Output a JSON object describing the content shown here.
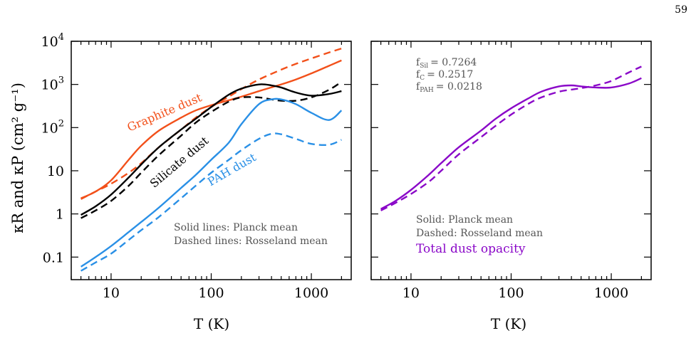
{
  "page_number": "59",
  "colors": {
    "graphite": "#f2501a",
    "silicate": "#000000",
    "pah": "#2a90e6",
    "total": "#8a08c8",
    "note": "#555555"
  },
  "chart_data": [
    {
      "type": "line",
      "xlabel": "T (K)",
      "ylabel": "κR and κP (cm² g⁻¹)",
      "xscale": "log",
      "yscale": "log",
      "xlim": [
        4,
        2500
      ],
      "ylim": [
        0.03,
        10000
      ],
      "x_ticks": [
        {
          "value": 10,
          "label": "10"
        },
        {
          "value": 100,
          "label": "100"
        },
        {
          "value": 1000,
          "label": "1000"
        }
      ],
      "y_ticks": [
        {
          "value": 0.1,
          "label": "0.1"
        },
        {
          "value": 1,
          "label": "1"
        },
        {
          "value": 10,
          "label": "10"
        },
        {
          "value": 100,
          "label": "10",
          "sup": "2"
        },
        {
          "value": 1000,
          "label": "10",
          "sup": "3"
        },
        {
          "value": 10000,
          "label": "10",
          "sup": "4"
        }
      ],
      "series": [
        {
          "key": "graphite",
          "color_key": "graphite",
          "style": "solid",
          "x": [
            5,
            7,
            10,
            15,
            20,
            30,
            50,
            70,
            100,
            150,
            200,
            300,
            500,
            700,
            1000,
            1500,
            2000
          ],
          "y": [
            2.3,
            3.3,
            6,
            18,
            38,
            85,
            170,
            250,
            330,
            430,
            520,
            700,
            1000,
            1300,
            1800,
            2700,
            3600
          ]
        },
        {
          "key": "graphite",
          "color_key": "graphite",
          "style": "dashed",
          "x": [
            5,
            7,
            10,
            15,
            20,
            30,
            50,
            70,
            100,
            150,
            200,
            300,
            500,
            700,
            1000,
            1500,
            2000
          ],
          "y": [
            2.2,
            3.3,
            5,
            9,
            15,
            35,
            90,
            170,
            300,
            520,
            780,
            1300,
            2200,
            3000,
            4000,
            5500,
            6800
          ]
        },
        {
          "key": "silicate",
          "color_key": "silicate",
          "style": "solid",
          "x": [
            5,
            7,
            10,
            15,
            20,
            30,
            50,
            70,
            100,
            150,
            200,
            300,
            400,
            500,
            700,
            1000,
            1500,
            2000
          ],
          "y": [
            0.95,
            1.5,
            2.8,
            7,
            14,
            35,
            90,
            160,
            300,
            580,
            800,
            1000,
            950,
            850,
            650,
            550,
            600,
            700
          ]
        },
        {
          "key": "silicate",
          "color_key": "silicate",
          "style": "dashed",
          "x": [
            5,
            7,
            10,
            15,
            20,
            30,
            50,
            70,
            100,
            150,
            200,
            300,
            400,
            500,
            700,
            1000,
            1500,
            2000
          ],
          "y": [
            0.8,
            1.2,
            2.0,
            4.5,
            9,
            23,
            65,
            130,
            230,
            400,
            500,
            500,
            450,
            420,
            420,
            500,
            750,
            1150
          ]
        },
        {
          "key": "pah",
          "color_key": "pah",
          "style": "solid",
          "x": [
            5,
            7,
            10,
            15,
            20,
            30,
            50,
            70,
            100,
            150,
            200,
            300,
            400,
            500,
            700,
            1000,
            1500,
            2000
          ],
          "y": [
            0.06,
            0.1,
            0.18,
            0.38,
            0.65,
            1.4,
            4,
            8,
            18,
            45,
            120,
            350,
            450,
            450,
            350,
            220,
            150,
            250
          ]
        },
        {
          "key": "pah",
          "color_key": "pah",
          "style": "dashed",
          "x": [
            5,
            7,
            10,
            15,
            20,
            30,
            50,
            70,
            100,
            150,
            200,
            300,
            400,
            500,
            700,
            1000,
            1500,
            2000
          ],
          "y": [
            0.048,
            0.075,
            0.12,
            0.25,
            0.42,
            0.85,
            2.3,
            4.5,
            9,
            18,
            30,
            55,
            72,
            70,
            55,
            42,
            40,
            52
          ]
        }
      ],
      "labels": [
        {
          "key": "graphite",
          "text": "Graphite dust",
          "color_key": "graphite"
        },
        {
          "key": "silicate",
          "text": "Silicate dust",
          "color_key": "silicate"
        },
        {
          "key": "pah",
          "text": "PAH dust",
          "color_key": "pah"
        }
      ],
      "notes": [
        "Solid lines: Planck mean",
        "Dashed lines: Rosseland mean"
      ]
    },
    {
      "type": "line",
      "xlabel": "T (K)",
      "xscale": "log",
      "yscale": "log",
      "xlim": [
        4,
        2500
      ],
      "ylim": [
        0.03,
        10000
      ],
      "x_ticks": [
        {
          "value": 10,
          "label": "10"
        },
        {
          "value": 100,
          "label": "100"
        },
        {
          "value": 1000,
          "label": "1000"
        }
      ],
      "series": [
        {
          "key": "total",
          "color_key": "total",
          "style": "solid",
          "x": [
            5,
            7,
            10,
            15,
            20,
            30,
            50,
            70,
            100,
            150,
            200,
            300,
            400,
            500,
            700,
            1000,
            1500,
            2000
          ],
          "y": [
            1.3,
            2.0,
            3.6,
            8,
            15,
            35,
            85,
            160,
            280,
            480,
            680,
            900,
            950,
            900,
            850,
            850,
            1050,
            1400
          ]
        },
        {
          "key": "total",
          "color_key": "total",
          "style": "dashed",
          "x": [
            5,
            7,
            10,
            15,
            20,
            30,
            50,
            70,
            100,
            150,
            200,
            300,
            400,
            500,
            700,
            1000,
            1500,
            2000
          ],
          "y": [
            1.2,
            1.8,
            2.9,
            5.5,
            10,
            24,
            60,
            110,
            200,
            360,
            500,
            680,
            760,
            820,
            950,
            1200,
            1900,
            2600
          ]
        }
      ],
      "fractions": [
        {
          "base": "f",
          "sub": "Sil",
          "value": "= 0.7264"
        },
        {
          "base": "f",
          "sub": "C",
          "value": "= 0.2517"
        },
        {
          "base": "f",
          "sub": "PAH",
          "value": "= 0.0218"
        }
      ],
      "notes": [
        "Solid: Planck mean",
        "Dashed: Rosseland mean"
      ],
      "legend_title": "Total dust opacity"
    }
  ]
}
